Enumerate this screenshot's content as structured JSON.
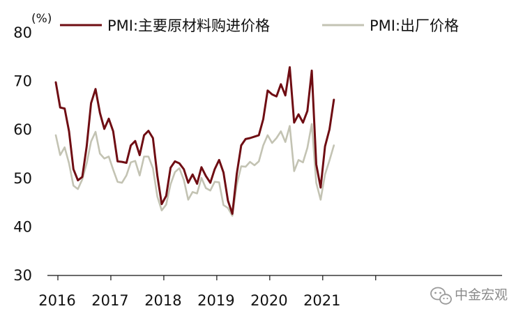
{
  "chart_data": {
    "type": "line",
    "title": "",
    "xlabel": "",
    "ylabel": "",
    "unit_label": "(%)",
    "ylim": [
      30,
      80
    ],
    "yticks": [
      30,
      40,
      50,
      60,
      70,
      80
    ],
    "xticks": [
      "2016",
      "2017",
      "2018",
      "2019",
      "2020",
      "2021"
    ],
    "x_start": "2016-01",
    "x_end": "2021-05",
    "grid": false,
    "legend_position": "top",
    "series": [
      {
        "name": "PMI:主要原材料购进价格",
        "color": "#6f0d13",
        "values": [
          69.8,
          64.6,
          64.4,
          59.7,
          51.9,
          49.6,
          50.3,
          56.6,
          65.5,
          68.4,
          63.5,
          60.2,
          62.3,
          59.7,
          53.5,
          53.4,
          53.2,
          56.8,
          57.7,
          54.8,
          58.9,
          59.8,
          58.3,
          50.6,
          44.7,
          46.4,
          52.2,
          53.5,
          53.1,
          51.9,
          49.1,
          50.8,
          48.9,
          52.3,
          50.5,
          49.1,
          51.9,
          53.8,
          51.2,
          45.4,
          42.7,
          50.9,
          56.8,
          58.1,
          58.3,
          58.6,
          58.9,
          62.2,
          68.1,
          67.3,
          66.9,
          69.4,
          67.1,
          72.9,
          61.5,
          63.2,
          61.5,
          63.9,
          72.2,
          52.9,
          48.1,
          56.6,
          60.1,
          66.2
        ]
      },
      {
        "name": "PMI:出厂价格",
        "color": "#c3c3b3",
        "values": [
          58.9,
          54.8,
          56.4,
          53.1,
          48.5,
          47.8,
          49.8,
          53.1,
          57.6,
          59.6,
          55.1,
          54.1,
          54.5,
          51.8,
          49.3,
          49.1,
          50.6,
          53.3,
          53.6,
          50.6,
          54.5,
          54.5,
          52.1,
          46.3,
          43.4,
          44.6,
          48.8,
          51.3,
          52.1,
          49.7,
          45.6,
          47.2,
          46.9,
          50.1,
          48.0,
          47.5,
          49.3,
          49.2,
          44.5,
          43.9,
          42.3,
          48.7,
          52.5,
          52.4,
          53.4,
          52.7,
          53.5,
          56.8,
          58.9,
          57.3,
          58.3,
          59.7,
          57.5,
          60.8,
          51.5,
          53.8,
          53.3,
          56.3,
          61.2,
          49.1,
          45.6,
          50.8,
          53.7,
          56.8
        ]
      }
    ]
  },
  "watermark": {
    "text": "中金宏观",
    "icon": "wechat-icon"
  }
}
